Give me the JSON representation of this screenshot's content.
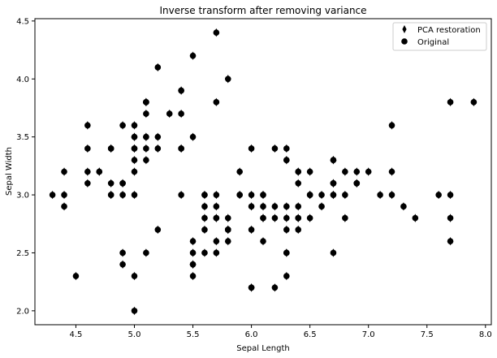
{
  "chart_data": {
    "type": "scatter",
    "title": "Inverse transform after removing variance",
    "xlabel": "Sepal Length",
    "ylabel": "Sepal Width",
    "xlim": [
      4.15,
      8.05
    ],
    "ylim": [
      1.88,
      4.52
    ],
    "xticks": [
      4.5,
      5.0,
      5.5,
      6.0,
      6.5,
      7.0,
      7.5,
      8.0
    ],
    "yticks": [
      2.0,
      2.5,
      3.0,
      3.5,
      4.0,
      4.5
    ],
    "grid": false,
    "legend": {
      "placement": "top-right"
    },
    "series": [
      {
        "name": "PCA restoration",
        "marker": "thin-diamond",
        "color": "#000000",
        "points": [
          [
            5.1,
            3.5
          ],
          [
            4.9,
            3.0
          ],
          [
            4.7,
            3.2
          ],
          [
            4.6,
            3.1
          ],
          [
            5.0,
            3.6
          ],
          [
            5.4,
            3.9
          ],
          [
            4.6,
            3.4
          ],
          [
            5.0,
            3.4
          ],
          [
            4.4,
            2.9
          ],
          [
            4.9,
            3.1
          ],
          [
            5.4,
            3.7
          ],
          [
            4.8,
            3.4
          ],
          [
            4.8,
            3.0
          ],
          [
            4.3,
            3.0
          ],
          [
            5.8,
            4.0
          ],
          [
            5.7,
            4.4
          ],
          [
            5.4,
            3.9
          ],
          [
            5.1,
            3.5
          ],
          [
            5.7,
            3.8
          ],
          [
            5.1,
            3.8
          ],
          [
            5.4,
            3.4
          ],
          [
            5.1,
            3.7
          ],
          [
            4.6,
            3.6
          ],
          [
            5.1,
            3.3
          ],
          [
            4.8,
            3.4
          ],
          [
            5.0,
            3.0
          ],
          [
            5.0,
            3.4
          ],
          [
            5.2,
            3.5
          ],
          [
            5.2,
            3.4
          ],
          [
            4.7,
            3.2
          ],
          [
            4.8,
            3.1
          ],
          [
            5.4,
            3.4
          ],
          [
            5.2,
            4.1
          ],
          [
            5.5,
            4.2
          ],
          [
            4.9,
            3.1
          ],
          [
            5.0,
            3.2
          ],
          [
            5.5,
            3.5
          ],
          [
            4.9,
            3.6
          ],
          [
            4.4,
            3.0
          ],
          [
            5.1,
            3.4
          ],
          [
            5.0,
            3.5
          ],
          [
            4.5,
            2.3
          ],
          [
            4.4,
            3.2
          ],
          [
            5.0,
            3.5
          ],
          [
            5.1,
            3.8
          ],
          [
            4.8,
            3.0
          ],
          [
            5.1,
            3.8
          ],
          [
            4.6,
            3.2
          ],
          [
            5.3,
            3.7
          ],
          [
            5.0,
            3.3
          ],
          [
            7.0,
            3.2
          ],
          [
            6.4,
            3.2
          ],
          [
            6.9,
            3.1
          ],
          [
            5.5,
            2.3
          ],
          [
            6.5,
            2.8
          ],
          [
            5.7,
            2.8
          ],
          [
            6.3,
            3.3
          ],
          [
            4.9,
            2.4
          ],
          [
            6.6,
            2.9
          ],
          [
            5.2,
            2.7
          ],
          [
            5.0,
            2.0
          ],
          [
            5.9,
            3.0
          ],
          [
            6.0,
            2.2
          ],
          [
            6.1,
            2.9
          ],
          [
            5.6,
            2.9
          ],
          [
            6.7,
            3.1
          ],
          [
            5.6,
            3.0
          ],
          [
            5.8,
            2.7
          ],
          [
            6.2,
            2.2
          ],
          [
            5.6,
            2.5
          ],
          [
            5.9,
            3.2
          ],
          [
            6.1,
            2.8
          ],
          [
            6.3,
            2.5
          ],
          [
            6.1,
            2.8
          ],
          [
            6.4,
            2.9
          ],
          [
            6.6,
            3.0
          ],
          [
            6.8,
            2.8
          ],
          [
            6.7,
            3.0
          ],
          [
            6.0,
            2.9
          ],
          [
            5.7,
            2.6
          ],
          [
            5.5,
            2.4
          ],
          [
            5.5,
            2.4
          ],
          [
            5.8,
            2.7
          ],
          [
            6.0,
            2.7
          ],
          [
            5.4,
            3.0
          ],
          [
            6.0,
            3.4
          ],
          [
            6.7,
            3.1
          ],
          [
            6.3,
            2.3
          ],
          [
            5.6,
            3.0
          ],
          [
            5.5,
            2.5
          ],
          [
            5.5,
            2.6
          ],
          [
            6.1,
            3.0
          ],
          [
            5.8,
            2.6
          ],
          [
            5.0,
            2.3
          ],
          [
            5.6,
            2.7
          ],
          [
            5.7,
            3.0
          ],
          [
            5.7,
            2.9
          ],
          [
            6.2,
            2.9
          ],
          [
            5.1,
            2.5
          ],
          [
            5.7,
            2.8
          ],
          [
            6.3,
            3.3
          ],
          [
            5.8,
            2.7
          ],
          [
            7.1,
            3.0
          ],
          [
            6.3,
            2.9
          ],
          [
            6.5,
            3.0
          ],
          [
            7.6,
            3.0
          ],
          [
            4.9,
            2.5
          ],
          [
            7.3,
            2.9
          ],
          [
            6.7,
            2.5
          ],
          [
            7.2,
            3.6
          ],
          [
            6.5,
            3.2
          ],
          [
            6.4,
            2.7
          ],
          [
            6.8,
            3.0
          ],
          [
            5.7,
            2.5
          ],
          [
            5.8,
            2.8
          ],
          [
            6.4,
            3.2
          ],
          [
            6.5,
            3.0
          ],
          [
            7.7,
            3.8
          ],
          [
            7.7,
            2.6
          ],
          [
            6.0,
            2.2
          ],
          [
            6.9,
            3.2
          ],
          [
            5.6,
            2.8
          ],
          [
            7.7,
            2.8
          ],
          [
            6.3,
            2.7
          ],
          [
            6.7,
            3.3
          ],
          [
            7.2,
            3.2
          ],
          [
            6.2,
            2.8
          ],
          [
            6.1,
            3.0
          ],
          [
            6.4,
            2.8
          ],
          [
            7.2,
            3.0
          ],
          [
            7.4,
            2.8
          ],
          [
            7.9,
            3.8
          ],
          [
            6.4,
            2.8
          ],
          [
            6.3,
            2.8
          ],
          [
            6.1,
            2.6
          ],
          [
            7.7,
            3.0
          ],
          [
            6.3,
            3.4
          ],
          [
            6.4,
            3.1
          ],
          [
            6.0,
            3.0
          ],
          [
            6.9,
            3.1
          ],
          [
            6.7,
            3.1
          ],
          [
            6.9,
            3.1
          ],
          [
            5.8,
            2.7
          ],
          [
            6.8,
            3.2
          ],
          [
            6.7,
            3.3
          ],
          [
            6.7,
            3.0
          ],
          [
            6.3,
            2.5
          ],
          [
            6.5,
            3.0
          ],
          [
            6.2,
            3.4
          ],
          [
            5.9,
            3.0
          ]
        ]
      },
      {
        "name": "Original",
        "marker": "circle",
        "color": "#000000",
        "same_points_as": "PCA restoration"
      }
    ]
  }
}
